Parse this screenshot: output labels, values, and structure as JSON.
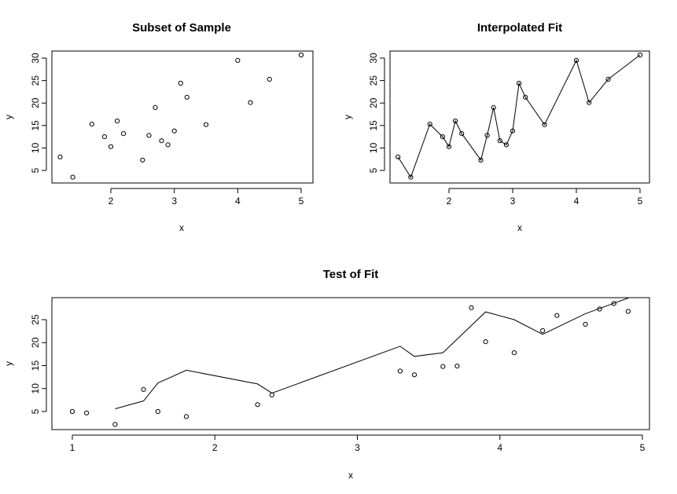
{
  "chart_data": [
    {
      "type": "scatter",
      "title": "Subset of Sample",
      "xlabel": "x",
      "ylabel": "y",
      "xlim": [
        1.2,
        5.0
      ],
      "ylim": [
        3.5,
        30.7
      ],
      "xticks": [
        2,
        3,
        4,
        5
      ],
      "yticks": [
        5,
        10,
        15,
        20,
        25,
        30
      ],
      "grid": false,
      "points": {
        "x": [
          1.2,
          1.4,
          1.7,
          1.9,
          2.0,
          2.1,
          2.2,
          2.5,
          2.6,
          2.7,
          2.8,
          2.9,
          3.0,
          3.1,
          3.2,
          3.5,
          4.0,
          4.2,
          4.5,
          5.0
        ],
        "y": [
          8.0,
          3.5,
          15.3,
          12.5,
          10.3,
          16.0,
          13.2,
          7.3,
          12.8,
          19.0,
          11.6,
          10.7,
          13.8,
          24.4,
          21.3,
          15.2,
          29.5,
          20.1,
          25.3,
          30.7
        ]
      }
    },
    {
      "type": "line",
      "title": "Interpolated Fit",
      "xlabel": "x",
      "ylabel": "y",
      "xlim": [
        1.2,
        5.0
      ],
      "ylim": [
        3.5,
        30.7
      ],
      "xticks": [
        2,
        3,
        4,
        5
      ],
      "yticks": [
        5,
        10,
        15,
        20,
        25,
        30
      ],
      "grid": false,
      "points": {
        "x": [
          1.2,
          1.4,
          1.7,
          1.9,
          2.0,
          2.1,
          2.2,
          2.5,
          2.6,
          2.7,
          2.8,
          2.9,
          3.0,
          3.1,
          3.2,
          3.5,
          4.0,
          4.2,
          4.5,
          5.0
        ],
        "y": [
          8.0,
          3.5,
          15.3,
          12.5,
          10.3,
          16.0,
          13.2,
          7.3,
          12.8,
          19.0,
          11.6,
          10.7,
          13.8,
          24.4,
          21.3,
          15.2,
          29.5,
          20.1,
          25.3,
          30.7
        ]
      },
      "line": {
        "x": [
          1.2,
          1.4,
          1.7,
          1.9,
          2.0,
          2.1,
          2.2,
          2.5,
          2.6,
          2.7,
          2.8,
          2.9,
          3.0,
          3.1,
          3.2,
          3.5,
          4.0,
          4.2,
          4.5,
          5.0
        ],
        "y": [
          8.0,
          3.5,
          15.3,
          12.5,
          10.3,
          16.0,
          13.2,
          7.3,
          12.8,
          19.0,
          11.6,
          10.7,
          13.8,
          24.4,
          21.3,
          15.2,
          29.5,
          20.1,
          25.3,
          30.7
        ]
      }
    },
    {
      "type": "scatter",
      "title": "Test of Fit",
      "xlabel": "x",
      "ylabel": "y",
      "xlim": [
        1.0,
        4.9
      ],
      "ylim": [
        2.2,
        29.7
      ],
      "xticks": [
        1,
        2,
        3,
        4,
        5
      ],
      "yticks": [
        5,
        10,
        15,
        20,
        25
      ],
      "grid": false,
      "points": {
        "x": [
          1.0,
          1.1,
          1.3,
          1.5,
          1.6,
          1.8,
          2.3,
          2.4,
          3.3,
          3.4,
          3.6,
          3.7,
          3.8,
          3.9,
          4.1,
          4.3,
          4.4,
          4.6,
          4.7,
          4.8,
          4.9
        ],
        "y": [
          5.0,
          4.7,
          2.2,
          9.8,
          5.0,
          3.9,
          6.5,
          8.6,
          13.8,
          13.0,
          14.8,
          14.9,
          27.6,
          20.2,
          17.8,
          22.6,
          25.9,
          24.0,
          27.3,
          28.5,
          26.8
        ]
      },
      "line": {
        "x": [
          1.3,
          1.5,
          1.6,
          1.8,
          2.3,
          2.4,
          3.3,
          3.4,
          3.6,
          3.9,
          4.1,
          4.3,
          4.6,
          4.9
        ],
        "y": [
          5.6,
          7.3,
          11.2,
          14.0,
          11.0,
          9.0,
          19.2,
          17.0,
          17.8,
          26.7,
          25.0,
          21.8,
          26.3,
          29.7
        ]
      }
    }
  ]
}
